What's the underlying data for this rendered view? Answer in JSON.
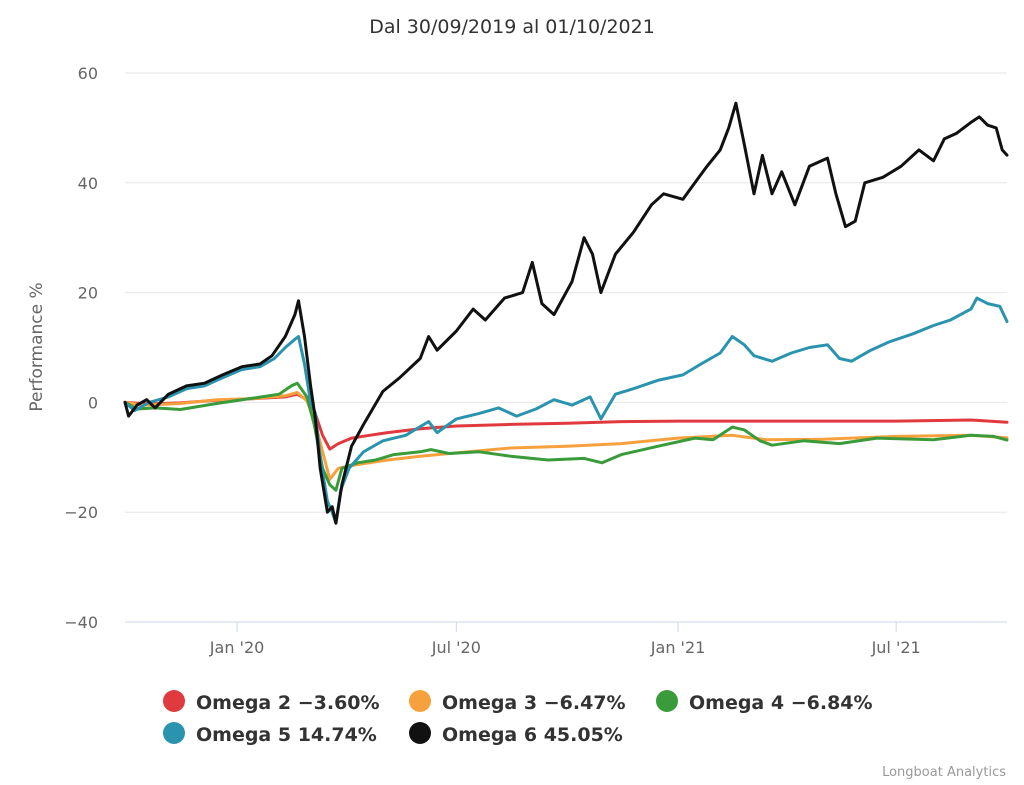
{
  "credit": "Longboat Analytics",
  "chart_data": {
    "type": "line",
    "title": "Dal 30/09/2019 al 01/10/2021",
    "ylabel": "Performance %",
    "xlabel": "",
    "xlim": [
      "2019-09-30",
      "2021-10-01"
    ],
    "ylim": [
      -40,
      60
    ],
    "y_ticks": [
      {
        "value": 60,
        "label": "60"
      },
      {
        "value": 40,
        "label": "40"
      },
      {
        "value": 20,
        "label": "20"
      },
      {
        "value": 0,
        "label": "0"
      },
      {
        "value": -20,
        "label": "−20"
      },
      {
        "value": -40,
        "label": "−40"
      }
    ],
    "x_ticks": [
      {
        "date": "2020-01-01",
        "label": "Jan '20"
      },
      {
        "date": "2020-07-01",
        "label": "Jul '20"
      },
      {
        "date": "2021-01-01",
        "label": "Jan '21"
      },
      {
        "date": "2021-07-01",
        "label": "Jul '21"
      }
    ],
    "grid": {
      "horizontal": true,
      "vertical": false
    },
    "legend_position": "bottom-center",
    "series": [
      {
        "name": "Omega 2",
        "legend_label": "Omega 2 −3.60%",
        "color": "#e03a3e",
        "points": [
          [
            "2019-09-30",
            0
          ],
          [
            "2019-10-20",
            -0.3
          ],
          [
            "2019-11-15",
            -0.1
          ],
          [
            "2019-12-15",
            0.4
          ],
          [
            "2020-01-15",
            0.7
          ],
          [
            "2020-02-10",
            1.0
          ],
          [
            "2020-02-20",
            1.5
          ],
          [
            "2020-02-28",
            0.5
          ],
          [
            "2020-03-05",
            -1.5
          ],
          [
            "2020-03-12",
            -6
          ],
          [
            "2020-03-18",
            -8.5
          ],
          [
            "2020-03-25",
            -7.5
          ],
          [
            "2020-04-05",
            -6.5
          ],
          [
            "2020-04-20",
            -6
          ],
          [
            "2020-05-05",
            -5.5
          ],
          [
            "2020-06-01",
            -4.8
          ],
          [
            "2020-07-01",
            -4.3
          ],
          [
            "2020-08-15",
            -4.0
          ],
          [
            "2020-10-01",
            -3.8
          ],
          [
            "2020-11-15",
            -3.5
          ],
          [
            "2021-01-01",
            -3.4
          ],
          [
            "2021-03-01",
            -3.4
          ],
          [
            "2021-05-01",
            -3.4
          ],
          [
            "2021-07-01",
            -3.4
          ],
          [
            "2021-09-01",
            -3.2
          ],
          [
            "2021-10-01",
            -3.6
          ]
        ]
      },
      {
        "name": "Omega 3",
        "legend_label": "Omega 3 −6.47%",
        "color": "#f7a13e",
        "points": [
          [
            "2019-09-30",
            0
          ],
          [
            "2019-10-15",
            -0.5
          ],
          [
            "2019-11-15",
            -0.2
          ],
          [
            "2019-12-15",
            0.5
          ],
          [
            "2020-01-15",
            0.7
          ],
          [
            "2020-02-10",
            1.2
          ],
          [
            "2020-02-20",
            1.8
          ],
          [
            "2020-02-28",
            0.3
          ],
          [
            "2020-03-05",
            -3
          ],
          [
            "2020-03-12",
            -9
          ],
          [
            "2020-03-18",
            -14
          ],
          [
            "2020-03-25",
            -12
          ],
          [
            "2020-04-05",
            -11.5
          ],
          [
            "2020-04-20",
            -11
          ],
          [
            "2020-05-05",
            -10.5
          ],
          [
            "2020-06-01",
            -9.8
          ],
          [
            "2020-07-01",
            -9.2
          ],
          [
            "2020-08-15",
            -8.3
          ],
          [
            "2020-10-01",
            -8.0
          ],
          [
            "2020-11-15",
            -7.5
          ],
          [
            "2021-01-01",
            -6.5
          ],
          [
            "2021-02-15",
            -6.0
          ],
          [
            "2021-03-15",
            -6.8
          ],
          [
            "2021-05-01",
            -6.7
          ],
          [
            "2021-07-01",
            -6.2
          ],
          [
            "2021-09-01",
            -6.0
          ],
          [
            "2021-10-01",
            -6.47
          ]
        ]
      },
      {
        "name": "Omega 4",
        "legend_label": "Omega 4 −6.84%",
        "color": "#3a9b3a",
        "points": [
          [
            "2019-09-30",
            0
          ],
          [
            "2019-10-10",
            -1.2
          ],
          [
            "2019-10-25",
            -1.0
          ],
          [
            "2019-11-15",
            -1.3
          ],
          [
            "2019-12-15",
            -0.2
          ],
          [
            "2020-01-15",
            0.8
          ],
          [
            "2020-02-05",
            1.5
          ],
          [
            "2020-02-15",
            3.0
          ],
          [
            "2020-02-20",
            3.5
          ],
          [
            "2020-02-28",
            1.0
          ],
          [
            "2020-03-05",
            -4
          ],
          [
            "2020-03-12",
            -12
          ],
          [
            "2020-03-18",
            -15
          ],
          [
            "2020-03-23",
            -16
          ],
          [
            "2020-03-28",
            -12
          ],
          [
            "2020-04-10",
            -11
          ],
          [
            "2020-04-25",
            -10.5
          ],
          [
            "2020-05-10",
            -9.5
          ],
          [
            "2020-06-01",
            -9.0
          ],
          [
            "2020-06-10",
            -8.6
          ],
          [
            "2020-06-25",
            -9.3
          ],
          [
            "2020-07-20",
            -9.0
          ],
          [
            "2020-08-15",
            -9.8
          ],
          [
            "2020-09-15",
            -10.5
          ],
          [
            "2020-10-15",
            -10.2
          ],
          [
            "2020-10-30",
            -11.0
          ],
          [
            "2020-11-15",
            -9.5
          ],
          [
            "2020-12-15",
            -8.0
          ],
          [
            "2021-01-15",
            -6.5
          ],
          [
            "2021-01-30",
            -6.8
          ],
          [
            "2021-02-15",
            -4.5
          ],
          [
            "2021-02-25",
            -5.0
          ],
          [
            "2021-03-10",
            -7.0
          ],
          [
            "2021-03-20",
            -7.8
          ],
          [
            "2021-04-15",
            -7.0
          ],
          [
            "2021-05-15",
            -7.5
          ],
          [
            "2021-06-15",
            -6.5
          ],
          [
            "2021-08-01",
            -6.8
          ],
          [
            "2021-09-01",
            -6.0
          ],
          [
            "2021-09-20",
            -6.2
          ],
          [
            "2021-10-01",
            -6.84
          ]
        ]
      },
      {
        "name": "Omega 5",
        "legend_label": "Omega 5 14.74%",
        "color": "#2a93ad",
        "points": [
          [
            "2019-09-30",
            0
          ],
          [
            "2019-10-08",
            -1.5
          ],
          [
            "2019-10-20",
            0
          ],
          [
            "2019-11-05",
            1.0
          ],
          [
            "2019-11-20",
            2.5
          ],
          [
            "2019-12-05",
            3.0
          ],
          [
            "2019-12-20",
            4.5
          ],
          [
            "2020-01-05",
            6.0
          ],
          [
            "2020-01-20",
            6.5
          ],
          [
            "2020-02-01",
            8.0
          ],
          [
            "2020-02-10",
            10.0
          ],
          [
            "2020-02-18",
            11.5
          ],
          [
            "2020-02-21",
            12.0
          ],
          [
            "2020-02-26",
            7.0
          ],
          [
            "2020-03-02",
            0
          ],
          [
            "2020-03-06",
            -2
          ],
          [
            "2020-03-10",
            -10
          ],
          [
            "2020-03-16",
            -18
          ],
          [
            "2020-03-20",
            -20
          ],
          [
            "2020-03-23",
            -22
          ],
          [
            "2020-03-27",
            -16
          ],
          [
            "2020-04-03",
            -12
          ],
          [
            "2020-04-15",
            -9
          ],
          [
            "2020-05-01",
            -7
          ],
          [
            "2020-05-20",
            -6
          ],
          [
            "2020-06-08",
            -3.5
          ],
          [
            "2020-06-15",
            -5.5
          ],
          [
            "2020-07-01",
            -3
          ],
          [
            "2020-07-20",
            -2.0
          ],
          [
            "2020-08-05",
            -1.0
          ],
          [
            "2020-08-20",
            -2.5
          ],
          [
            "2020-09-05",
            -1.2
          ],
          [
            "2020-09-20",
            0.5
          ],
          [
            "2020-10-05",
            -0.5
          ],
          [
            "2020-10-20",
            1.0
          ],
          [
            "2020-10-29",
            -3.0
          ],
          [
            "2020-11-10",
            1.5
          ],
          [
            "2020-11-25",
            2.5
          ],
          [
            "2020-12-15",
            4.0
          ],
          [
            "2021-01-05",
            5.0
          ],
          [
            "2021-01-20",
            7.0
          ],
          [
            "2021-02-05",
            9.0
          ],
          [
            "2021-02-15",
            12.0
          ],
          [
            "2021-02-25",
            10.5
          ],
          [
            "2021-03-05",
            8.5
          ],
          [
            "2021-03-20",
            7.5
          ],
          [
            "2021-04-05",
            9.0
          ],
          [
            "2021-04-20",
            10.0
          ],
          [
            "2021-05-05",
            10.5
          ],
          [
            "2021-05-15",
            8.0
          ],
          [
            "2021-05-25",
            7.5
          ],
          [
            "2021-06-10",
            9.5
          ],
          [
            "2021-06-25",
            11.0
          ],
          [
            "2021-07-15",
            12.5
          ],
          [
            "2021-08-01",
            14.0
          ],
          [
            "2021-08-15",
            15.0
          ],
          [
            "2021-09-01",
            17.0
          ],
          [
            "2021-09-06",
            19.0
          ],
          [
            "2021-09-15",
            18.0
          ],
          [
            "2021-09-25",
            17.5
          ],
          [
            "2021-10-01",
            14.74
          ]
        ]
      },
      {
        "name": "Omega 6",
        "legend_label": "Omega 6 45.05%",
        "color": "#111111",
        "points": [
          [
            "2019-09-30",
            0
          ],
          [
            "2019-10-03",
            -2.5
          ],
          [
            "2019-10-10",
            -0.5
          ],
          [
            "2019-10-18",
            0.5
          ],
          [
            "2019-10-25",
            -1.0
          ],
          [
            "2019-11-05",
            1.5
          ],
          [
            "2019-11-20",
            3.0
          ],
          [
            "2019-12-05",
            3.5
          ],
          [
            "2019-12-20",
            5.0
          ],
          [
            "2020-01-05",
            6.5
          ],
          [
            "2020-01-20",
            7.0
          ],
          [
            "2020-01-30",
            8.5
          ],
          [
            "2020-02-10",
            12.0
          ],
          [
            "2020-02-18",
            16.0
          ],
          [
            "2020-02-21",
            18.5
          ],
          [
            "2020-02-26",
            12.0
          ],
          [
            "2020-03-02",
            3.0
          ],
          [
            "2020-03-06",
            -3.0
          ],
          [
            "2020-03-10",
            -12.0
          ],
          [
            "2020-03-16",
            -20.0
          ],
          [
            "2020-03-20",
            -19.0
          ],
          [
            "2020-03-23",
            -22.0
          ],
          [
            "2020-03-28",
            -15.0
          ],
          [
            "2020-04-05",
            -8.0
          ],
          [
            "2020-04-15",
            -4.0
          ],
          [
            "2020-05-01",
            2.0
          ],
          [
            "2020-05-15",
            4.5
          ],
          [
            "2020-06-01",
            8.0
          ],
          [
            "2020-06-08",
            12.0
          ],
          [
            "2020-06-15",
            9.5
          ],
          [
            "2020-07-01",
            13.0
          ],
          [
            "2020-07-15",
            17.0
          ],
          [
            "2020-07-25",
            15.0
          ],
          [
            "2020-08-10",
            19.0
          ],
          [
            "2020-08-25",
            20.0
          ],
          [
            "2020-09-02",
            25.5
          ],
          [
            "2020-09-10",
            18.0
          ],
          [
            "2020-09-20",
            16.0
          ],
          [
            "2020-10-05",
            22.0
          ],
          [
            "2020-10-15",
            30.0
          ],
          [
            "2020-10-22",
            27.0
          ],
          [
            "2020-10-29",
            20.0
          ],
          [
            "2020-11-10",
            27.0
          ],
          [
            "2020-11-25",
            31.0
          ],
          [
            "2020-12-10",
            36.0
          ],
          [
            "2020-12-20",
            38.0
          ],
          [
            "2021-01-05",
            37.0
          ],
          [
            "2021-01-15",
            40.0
          ],
          [
            "2021-01-25",
            43.0
          ],
          [
            "2021-02-05",
            46.0
          ],
          [
            "2021-02-12",
            50.0
          ],
          [
            "2021-02-18",
            54.5
          ],
          [
            "2021-02-25",
            47.0
          ],
          [
            "2021-03-05",
            38.0
          ],
          [
            "2021-03-12",
            45.0
          ],
          [
            "2021-03-20",
            38.0
          ],
          [
            "2021-03-28",
            42.0
          ],
          [
            "2021-04-08",
            36.0
          ],
          [
            "2021-04-20",
            43.0
          ],
          [
            "2021-05-05",
            44.5
          ],
          [
            "2021-05-12",
            38.0
          ],
          [
            "2021-05-20",
            32.0
          ],
          [
            "2021-05-28",
            33.0
          ],
          [
            "2021-06-05",
            40.0
          ],
          [
            "2021-06-20",
            41.0
          ],
          [
            "2021-07-05",
            43.0
          ],
          [
            "2021-07-20",
            46.0
          ],
          [
            "2021-08-01",
            44.0
          ],
          [
            "2021-08-10",
            48.0
          ],
          [
            "2021-08-20",
            49.0
          ],
          [
            "2021-09-01",
            51.0
          ],
          [
            "2021-09-08",
            52.0
          ],
          [
            "2021-09-15",
            50.5
          ],
          [
            "2021-09-22",
            50.0
          ],
          [
            "2021-09-27",
            46.0
          ],
          [
            "2021-10-01",
            45.05
          ]
        ]
      }
    ]
  }
}
